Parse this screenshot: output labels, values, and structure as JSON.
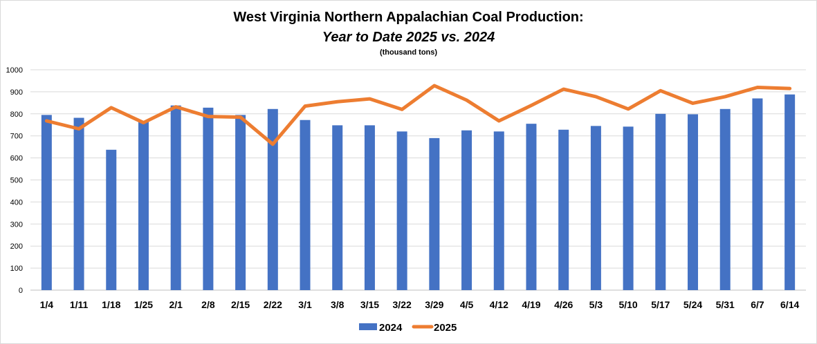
{
  "chart_data": {
    "type": "bar",
    "title": "West Virginia Northern Appalachian Coal Production:",
    "subtitle": "Year to Date 2025 vs. 2024",
    "unit_label": "(thousand tons)",
    "categories": [
      "1/4",
      "1/11",
      "1/18",
      "1/25",
      "2/1",
      "2/8",
      "2/15",
      "2/22",
      "3/1",
      "3/8",
      "3/15",
      "3/22",
      "3/29",
      "4/5",
      "4/12",
      "4/19",
      "4/26",
      "5/3",
      "5/10",
      "5/17",
      "5/24",
      "5/31",
      "6/7",
      "6/14"
    ],
    "y_ticks": [
      "0",
      "100",
      "200",
      "300",
      "400",
      "500",
      "600",
      "700",
      "800",
      "900",
      "1000"
    ],
    "ylim": [
      0,
      1000
    ],
    "grid": true,
    "legend_position": "bottom",
    "series": [
      {
        "name": "2024",
        "type": "bar",
        "color": "#4472C4",
        "values": [
          795,
          782,
          637,
          765,
          838,
          828,
          795,
          822,
          772,
          748,
          748,
          720,
          690,
          725,
          720,
          755,
          728,
          745,
          742,
          800,
          798,
          822,
          870,
          888
        ]
      },
      {
        "name": "2025",
        "type": "line",
        "color": "#ED7D31",
        "values": [
          768,
          732,
          828,
          760,
          832,
          788,
          785,
          662,
          835,
          855,
          868,
          820,
          928,
          862,
          768,
          838,
          912,
          878,
          822,
          905,
          848,
          878,
          920,
          915
        ]
      }
    ]
  }
}
